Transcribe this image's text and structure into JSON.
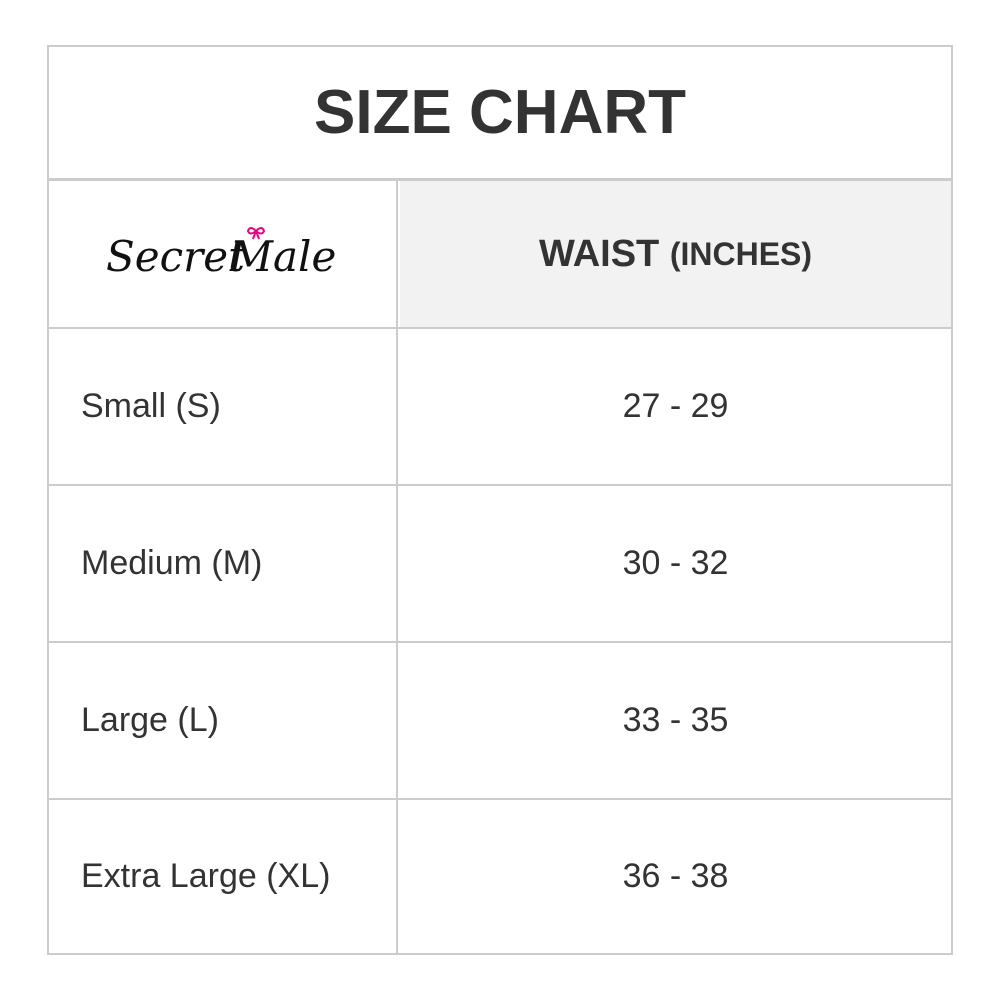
{
  "title": "SIZE CHART",
  "brand_logo": "Secret Male",
  "header": {
    "column_main": "WAIST",
    "column_unit": "(INCHES)"
  },
  "rows": [
    {
      "size": "Small (S)",
      "waist": "27 - 29"
    },
    {
      "size": "Medium (M)",
      "waist": "30 - 32"
    },
    {
      "size": "Large (L)",
      "waist": "33 - 35"
    },
    {
      "size": "Extra Large (XL)",
      "waist": "36 - 38"
    }
  ],
  "colors": {
    "border": "#cccccc",
    "header_bg": "#f2f2f2",
    "text": "#333333",
    "bow": "#e6007e"
  }
}
